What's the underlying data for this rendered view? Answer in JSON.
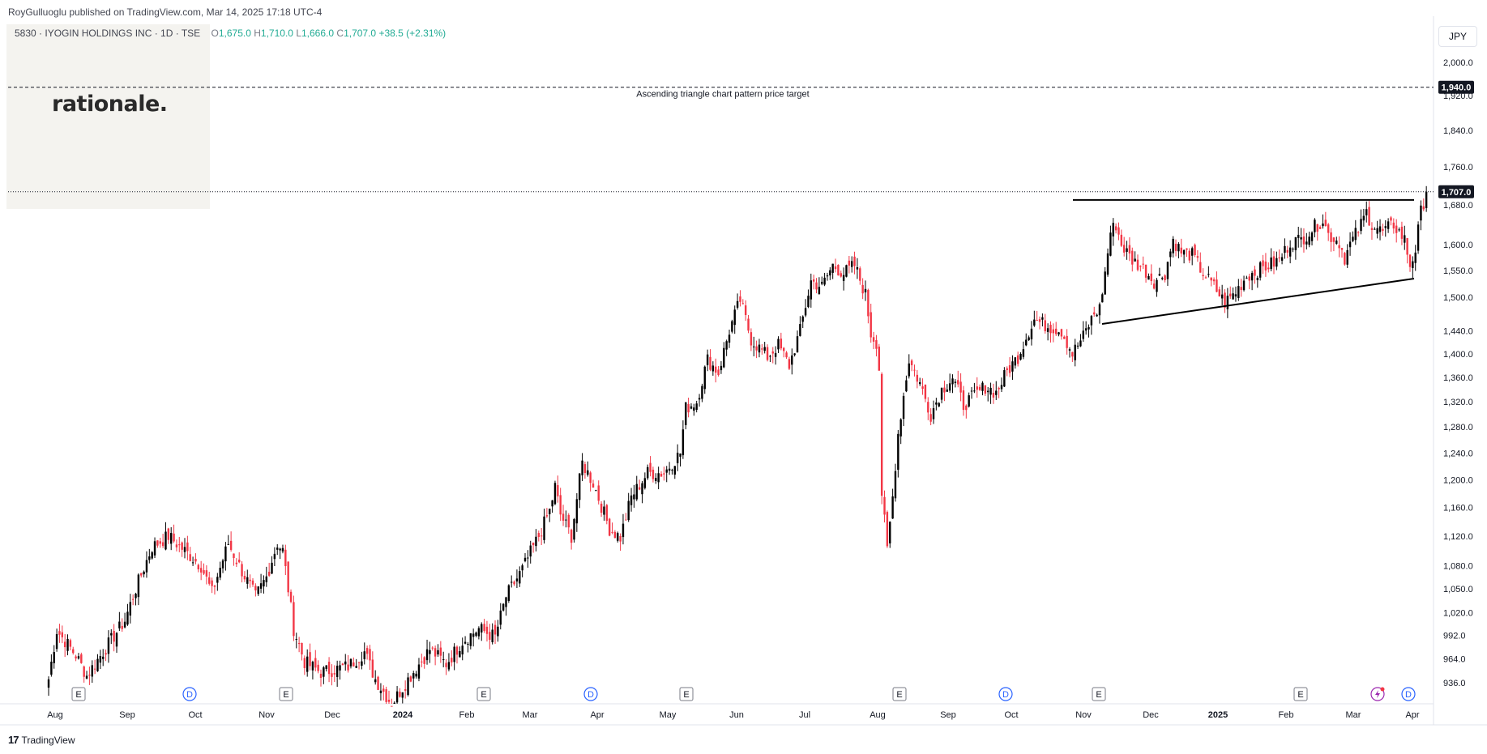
{
  "header": {
    "published_by": "RoyGulluoglu published on TradingView.com, Mar 14, 2025 17:18 UTC-4"
  },
  "logo": {
    "text": "rationale."
  },
  "ohlc": {
    "symbol": "5830 · IYOGIN HOLDINGS INC · 1D · TSE",
    "o_label": "O",
    "o": "1,675.0",
    "h_label": "H",
    "h": "1,710.0",
    "l_label": "L",
    "l": "1,666.0",
    "c_label": "C",
    "c": "1,707.0",
    "change": "+38.5 (+2.31%)"
  },
  "currency": "JPY",
  "footer": {
    "brand": "TradingView"
  },
  "colors": {
    "up": "#000000",
    "down": "#f23645",
    "event_e": "#787b86",
    "event_d": "#2962ff"
  },
  "chart_data": {
    "type": "candlestick",
    "scale": "log",
    "y_ticks": [
      936,
      964,
      992,
      1020,
      1050,
      1080,
      1120,
      1160,
      1200,
      1240,
      1280,
      1320,
      1360,
      1400,
      1440,
      1500,
      1550,
      1600,
      1680,
      1760,
      1840,
      1920,
      2000
    ],
    "y_tick_labels": [
      "936.0",
      "964.0",
      "992.0",
      "1,020.0",
      "1,050.0",
      "1,080.0",
      "1,120.0",
      "1,160.0",
      "1,200.0",
      "1,240.0",
      "1,280.0",
      "1,320.0",
      "1,360.0",
      "1,400.0",
      "1,440.0",
      "1,500.0",
      "1,550.0",
      "1,600.0",
      "1,680.0",
      "1,760.0",
      "1,840.0",
      "1,920.0",
      "2,000.0"
    ],
    "x_labels": [
      {
        "label": "Aug",
        "bold": false
      },
      {
        "label": "Sep",
        "bold": false
      },
      {
        "label": "Oct",
        "bold": false
      },
      {
        "label": "Nov",
        "bold": false
      },
      {
        "label": "Dec",
        "bold": false
      },
      {
        "label": "2024",
        "bold": true
      },
      {
        "label": "Feb",
        "bold": false
      },
      {
        "label": "Mar",
        "bold": false
      },
      {
        "label": "Apr",
        "bold": false
      },
      {
        "label": "May",
        "bold": false
      },
      {
        "label": "Jun",
        "bold": false
      },
      {
        "label": "Jul",
        "bold": false
      },
      {
        "label": "Aug",
        "bold": false
      },
      {
        "label": "Sep",
        "bold": false
      },
      {
        "label": "Oct",
        "bold": false
      },
      {
        "label": "Nov",
        "bold": false
      },
      {
        "label": "Dec",
        "bold": false
      },
      {
        "label": "2025",
        "bold": true
      },
      {
        "label": "Feb",
        "bold": false
      },
      {
        "label": "Mar",
        "bold": false
      },
      {
        "label": "Apr",
        "bold": false
      }
    ],
    "events": [
      {
        "type": "E",
        "month": "Aug 2023"
      },
      {
        "type": "D",
        "month": "Sep 2023"
      },
      {
        "type": "E",
        "month": "Nov 2023"
      },
      {
        "type": "E",
        "month": "Feb 2024"
      },
      {
        "type": "D",
        "month": "Mar 2024"
      },
      {
        "type": "E",
        "month": "May 2024"
      },
      {
        "type": "E",
        "month": "Aug 2024"
      },
      {
        "type": "D",
        "month": "Oct 2024"
      },
      {
        "type": "E",
        "month": "Nov 2024"
      },
      {
        "type": "E",
        "month": "Feb 2025"
      },
      {
        "type": "flash",
        "month": "Mar 2025"
      },
      {
        "type": "D",
        "month": "Mar 2025"
      }
    ],
    "price_labels": [
      {
        "value": 1940,
        "label": "1,940.0",
        "style": "dark"
      },
      {
        "value": 1707,
        "label": "1,707.0",
        "style": "dark"
      }
    ],
    "annotations": [
      {
        "text": "Ascending triangle chart pattern price target",
        "value": 1940
      }
    ],
    "resistance_line": {
      "start": "early Nov 2024",
      "end": "late Mar 2025",
      "value": 1690
    },
    "support_line": {
      "start": "mid Nov 2024",
      "start_value": 1452,
      "end": "late Mar 2025",
      "end_value": 1535
    },
    "waypoints": [
      [
        0,
        940
      ],
      [
        3,
        998
      ],
      [
        10,
        968
      ],
      [
        14,
        944
      ],
      [
        20,
        972
      ],
      [
        28,
        1010
      ],
      [
        32,
        1050
      ],
      [
        38,
        1105
      ],
      [
        44,
        1120
      ],
      [
        50,
        1100
      ],
      [
        56,
        1080
      ],
      [
        60,
        1045
      ],
      [
        66,
        1110
      ],
      [
        70,
        1080
      ],
      [
        76,
        1040
      ],
      [
        80,
        1065
      ],
      [
        84,
        1110
      ],
      [
        86,
        1100
      ],
      [
        90,
        1000
      ],
      [
        94,
        960
      ],
      [
        100,
        948
      ],
      [
        110,
        955
      ],
      [
        116,
        972
      ],
      [
        120,
        940
      ],
      [
        126,
        912
      ],
      [
        132,
        940
      ],
      [
        140,
        975
      ],
      [
        146,
        958
      ],
      [
        152,
        985
      ],
      [
        158,
        1000
      ],
      [
        164,
        990
      ],
      [
        168,
        1040
      ],
      [
        174,
        1075
      ],
      [
        180,
        1120
      ],
      [
        184,
        1155
      ],
      [
        186,
        1190
      ],
      [
        188,
        1150
      ],
      [
        192,
        1120
      ],
      [
        196,
        1225
      ],
      [
        200,
        1195
      ],
      [
        206,
        1130
      ],
      [
        210,
        1118
      ],
      [
        214,
        1175
      ],
      [
        220,
        1210
      ],
      [
        226,
        1210
      ],
      [
        232,
        1240
      ],
      [
        234,
        1310
      ],
      [
        238,
        1320
      ],
      [
        242,
        1390
      ],
      [
        246,
        1368
      ],
      [
        250,
        1440
      ],
      [
        254,
        1495
      ],
      [
        258,
        1425
      ],
      [
        264,
        1395
      ],
      [
        268,
        1415
      ],
      [
        272,
        1380
      ],
      [
        276,
        1440
      ],
      [
        280,
        1530
      ],
      [
        284,
        1520
      ],
      [
        288,
        1560
      ],
      [
        292,
        1545
      ],
      [
        296,
        1560
      ],
      [
        300,
        1505
      ],
      [
        302,
        1435
      ],
      [
        304,
        1420
      ],
      [
        305,
        1375
      ],
      [
        306,
        1180
      ],
      [
        308,
        1100
      ],
      [
        310,
        1175
      ],
      [
        312,
        1270
      ],
      [
        316,
        1390
      ],
      [
        320,
        1350
      ],
      [
        324,
        1300
      ],
      [
        328,
        1340
      ],
      [
        332,
        1360
      ],
      [
        336,
        1315
      ],
      [
        340,
        1330
      ],
      [
        344,
        1345
      ],
      [
        348,
        1335
      ],
      [
        352,
        1370
      ],
      [
        356,
        1395
      ],
      [
        360,
        1440
      ],
      [
        362,
        1460
      ],
      [
        366,
        1450
      ],
      [
        372,
        1440
      ],
      [
        376,
        1400
      ],
      [
        380,
        1430
      ],
      [
        384,
        1470
      ],
      [
        386,
        1480
      ],
      [
        388,
        1545
      ],
      [
        390,
        1625
      ],
      [
        392,
        1640
      ],
      [
        394,
        1600
      ],
      [
        398,
        1570
      ],
      [
        402,
        1555
      ],
      [
        406,
        1530
      ],
      [
        410,
        1545
      ],
      [
        413,
        1610
      ],
      [
        416,
        1585
      ],
      [
        420,
        1580
      ],
      [
        424,
        1545
      ],
      [
        428,
        1520
      ],
      [
        432,
        1490
      ],
      [
        436,
        1510
      ],
      [
        440,
        1540
      ],
      [
        446,
        1555
      ],
      [
        452,
        1570
      ],
      [
        456,
        1605
      ],
      [
        460,
        1610
      ],
      [
        464,
        1630
      ],
      [
        468,
        1650
      ],
      [
        470,
        1620
      ],
      [
        474,
        1605
      ],
      [
        476,
        1575
      ],
      [
        478,
        1600
      ],
      [
        482,
        1640
      ],
      [
        484,
        1665
      ],
      [
        486,
        1640
      ],
      [
        490,
        1625
      ],
      [
        494,
        1640
      ],
      [
        498,
        1610
      ],
      [
        500,
        1560
      ],
      [
        502,
        1590
      ],
      [
        504,
        1665
      ],
      [
        506,
        1707
      ]
    ]
  }
}
